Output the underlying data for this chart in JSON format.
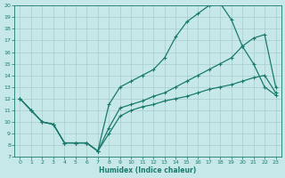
{
  "xlabel": "Humidex (Indice chaleur)",
  "bg_color": "#c6e8e8",
  "line_color": "#1a7a6e",
  "grid_color": "#a8cccc",
  "xlim": [
    -0.5,
    23.5
  ],
  "ylim": [
    7,
    20
  ],
  "xticks": [
    0,
    1,
    2,
    3,
    4,
    5,
    6,
    7,
    8,
    9,
    10,
    11,
    12,
    13,
    14,
    15,
    16,
    17,
    18,
    19,
    20,
    21,
    22,
    23
  ],
  "yticks": [
    7,
    8,
    9,
    10,
    11,
    12,
    13,
    14,
    15,
    16,
    17,
    18,
    19,
    20
  ],
  "line1_x": [
    0,
    1,
    2,
    3,
    4,
    5,
    6,
    7,
    8,
    9,
    10,
    11,
    12,
    13,
    14,
    15,
    16,
    17,
    18,
    19,
    20,
    21,
    22,
    23
  ],
  "line1_y": [
    12,
    11,
    10,
    9.8,
    8.2,
    8.2,
    8.2,
    7.5,
    11.5,
    13.0,
    13.5,
    14.0,
    14.5,
    15.5,
    17.3,
    18.6,
    19.3,
    20.0,
    20.2,
    18.8,
    16.5,
    15.0,
    13.0,
    12.3
  ],
  "line2_x": [
    0,
    1,
    2,
    3,
    4,
    5,
    6,
    7,
    8,
    9,
    10,
    11,
    12,
    13,
    14,
    15,
    16,
    17,
    18,
    19,
    20,
    21,
    22,
    23
  ],
  "line2_y": [
    12,
    11,
    10,
    9.8,
    8.2,
    8.2,
    8.2,
    7.5,
    9.5,
    11.2,
    11.5,
    11.8,
    12.2,
    12.5,
    13.0,
    13.5,
    14.0,
    14.5,
    15.0,
    15.5,
    16.5,
    17.2,
    17.5,
    13.0
  ],
  "line3_x": [
    0,
    1,
    2,
    3,
    4,
    5,
    6,
    7,
    8,
    9,
    10,
    11,
    12,
    13,
    14,
    15,
    16,
    17,
    18,
    19,
    20,
    21,
    22,
    23
  ],
  "line3_y": [
    12,
    11,
    10,
    9.8,
    8.2,
    8.2,
    8.2,
    7.5,
    9.0,
    10.5,
    11.0,
    11.3,
    11.5,
    11.8,
    12.0,
    12.2,
    12.5,
    12.8,
    13.0,
    13.2,
    13.5,
    13.8,
    14.0,
    12.5
  ],
  "marker": "+"
}
